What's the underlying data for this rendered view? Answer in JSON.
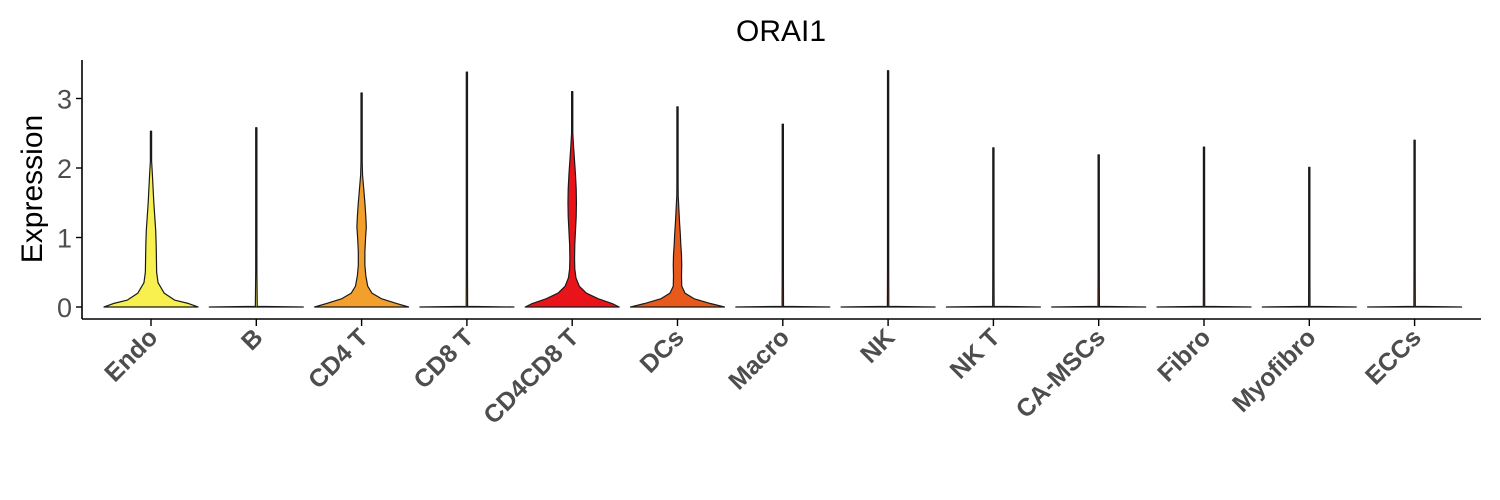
{
  "chart_data": {
    "type": "violin",
    "title": "ORAI1",
    "xlabel": "",
    "ylabel": "Expression",
    "ylim": [
      -0.15,
      3.55
    ],
    "yticks": [
      0,
      1,
      2,
      3
    ],
    "grid": false,
    "legend": "none",
    "categories": [
      "Endo",
      "B",
      "CD4 T",
      "CD8 T",
      "CD4CD8 T",
      "DCs",
      "Macro",
      "NK",
      "NK T",
      "CA-MSCs",
      "Fibro",
      "Myofibro",
      "ECCs"
    ],
    "series": [
      {
        "category": "Endo",
        "color": "#f7f04f",
        "max": 2.53,
        "profile": [
          [
            0,
            1.0
          ],
          [
            0.05,
            0.8
          ],
          [
            0.1,
            0.5
          ],
          [
            0.2,
            0.28
          ],
          [
            0.35,
            0.15
          ],
          [
            0.5,
            0.12
          ],
          [
            0.7,
            0.115
          ],
          [
            0.9,
            0.11
          ],
          [
            1.1,
            0.1
          ],
          [
            1.3,
            0.08
          ],
          [
            1.5,
            0.06
          ],
          [
            1.7,
            0.045
          ],
          [
            1.9,
            0.03
          ],
          [
            2.1,
            0.012
          ],
          [
            2.3,
            0.005
          ],
          [
            2.53,
            0
          ]
        ]
      },
      {
        "category": "B",
        "color": "#f5e84a",
        "max": 2.58,
        "profile": [
          [
            0,
            1.0
          ],
          [
            0.01,
            0.02
          ],
          [
            0.5,
            0.004
          ],
          [
            1.0,
            0.003
          ],
          [
            2.0,
            0.002
          ],
          [
            2.58,
            0
          ]
        ]
      },
      {
        "category": "CD4 T",
        "color": "#f2a02b",
        "max": 3.08,
        "profile": [
          [
            0,
            1.0
          ],
          [
            0.05,
            0.75
          ],
          [
            0.12,
            0.42
          ],
          [
            0.2,
            0.22
          ],
          [
            0.3,
            0.13
          ],
          [
            0.45,
            0.09
          ],
          [
            0.6,
            0.07
          ],
          [
            0.8,
            0.07
          ],
          [
            1.0,
            0.085
          ],
          [
            1.15,
            0.1
          ],
          [
            1.3,
            0.09
          ],
          [
            1.5,
            0.07
          ],
          [
            1.7,
            0.045
          ],
          [
            1.9,
            0.02
          ],
          [
            2.1,
            0.008
          ],
          [
            2.5,
            0.004
          ],
          [
            3.08,
            0
          ]
        ]
      },
      {
        "category": "CD8 T",
        "color": "#f0a030",
        "max": 3.38,
        "profile": [
          [
            0,
            1.0
          ],
          [
            0.01,
            0.015
          ],
          [
            0.5,
            0.003
          ],
          [
            1.0,
            0.002
          ],
          [
            2.0,
            0.002
          ],
          [
            3.38,
            0
          ]
        ]
      },
      {
        "category": "CD4CD8 T",
        "color": "#e8141a",
        "max": 3.1,
        "profile": [
          [
            0,
            1.0
          ],
          [
            0.05,
            0.85
          ],
          [
            0.12,
            0.55
          ],
          [
            0.2,
            0.3
          ],
          [
            0.3,
            0.15
          ],
          [
            0.42,
            0.08
          ],
          [
            0.55,
            0.055
          ],
          [
            0.7,
            0.05
          ],
          [
            0.9,
            0.055
          ],
          [
            1.1,
            0.07
          ],
          [
            1.3,
            0.085
          ],
          [
            1.5,
            0.09
          ],
          [
            1.7,
            0.085
          ],
          [
            1.9,
            0.07
          ],
          [
            2.1,
            0.05
          ],
          [
            2.3,
            0.03
          ],
          [
            2.5,
            0.012
          ],
          [
            2.7,
            0.004
          ],
          [
            3.1,
            0
          ]
        ]
      },
      {
        "category": "DCs",
        "color": "#e8591c",
        "max": 2.88,
        "profile": [
          [
            0,
            1.0
          ],
          [
            0.05,
            0.7
          ],
          [
            0.12,
            0.35
          ],
          [
            0.2,
            0.16
          ],
          [
            0.3,
            0.09
          ],
          [
            0.45,
            0.085
          ],
          [
            0.6,
            0.09
          ],
          [
            0.75,
            0.085
          ],
          [
            0.9,
            0.07
          ],
          [
            1.05,
            0.06
          ],
          [
            1.2,
            0.045
          ],
          [
            1.4,
            0.03
          ],
          [
            1.6,
            0.015
          ],
          [
            1.8,
            0.007
          ],
          [
            2.2,
            0.003
          ],
          [
            2.88,
            0
          ]
        ]
      },
      {
        "category": "Macro",
        "color": "#e8591c",
        "max": 2.63,
        "profile": [
          [
            0,
            1.0
          ],
          [
            0.01,
            0.015
          ],
          [
            0.5,
            0.003
          ],
          [
            1.0,
            0.002
          ],
          [
            2.0,
            0.002
          ],
          [
            2.63,
            0
          ]
        ]
      },
      {
        "category": "NK",
        "color": "#e8591c",
        "max": 3.4,
        "profile": [
          [
            0,
            1.0
          ],
          [
            0.01,
            0.015
          ],
          [
            0.5,
            0.003
          ],
          [
            1.0,
            0.002
          ],
          [
            2.0,
            0.002
          ],
          [
            3.4,
            0
          ]
        ]
      },
      {
        "category": "NK T",
        "color": "#e8591c",
        "max": 2.29,
        "profile": [
          [
            0,
            1.0
          ],
          [
            0.01,
            0.015
          ],
          [
            0.5,
            0.003
          ],
          [
            1.0,
            0.002
          ],
          [
            1.6,
            0.005
          ],
          [
            1.8,
            0.005
          ],
          [
            2.29,
            0
          ]
        ]
      },
      {
        "category": "CA-MSCs",
        "color": "#e8591c",
        "max": 2.19,
        "profile": [
          [
            0,
            1.0
          ],
          [
            0.01,
            0.015
          ],
          [
            0.5,
            0.003
          ],
          [
            1.0,
            0.002
          ],
          [
            2.19,
            0
          ]
        ]
      },
      {
        "category": "Fibro",
        "color": "#e8591c",
        "max": 2.3,
        "profile": [
          [
            0,
            1.0
          ],
          [
            0.01,
            0.015
          ],
          [
            0.5,
            0.003
          ],
          [
            1.0,
            0.002
          ],
          [
            2.3,
            0
          ]
        ]
      },
      {
        "category": "Myofibro",
        "color": "#e8591c",
        "max": 2.01,
        "profile": [
          [
            0,
            1.0
          ],
          [
            0.01,
            0.015
          ],
          [
            0.5,
            0.003
          ],
          [
            1.0,
            0.002
          ],
          [
            2.01,
            0
          ]
        ]
      },
      {
        "category": "ECCs",
        "color": "#e8591c",
        "max": 2.4,
        "profile": [
          [
            0,
            1.0
          ],
          [
            0.01,
            0.015
          ],
          [
            0.5,
            0.003
          ],
          [
            1.0,
            0.002
          ],
          [
            2.4,
            0
          ]
        ]
      }
    ]
  }
}
